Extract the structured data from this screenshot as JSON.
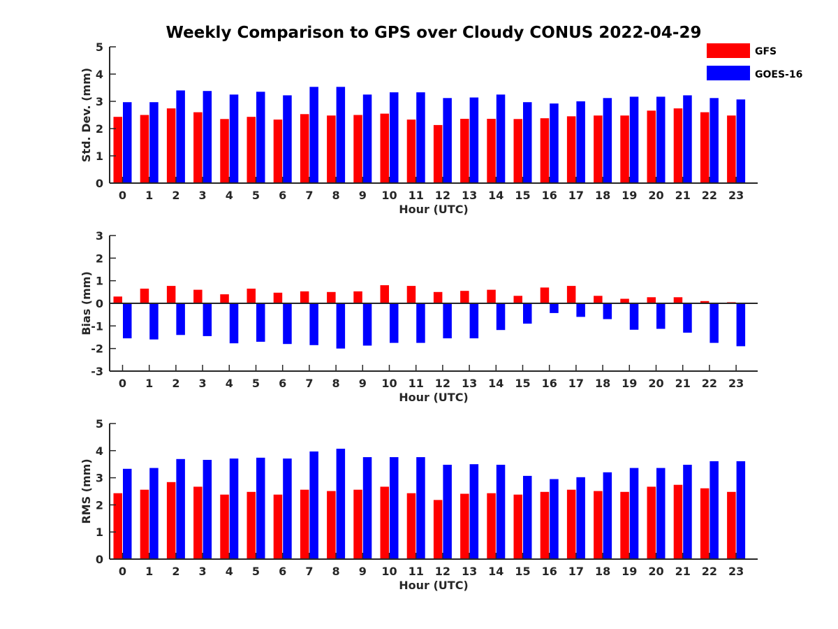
{
  "chart_data": {
    "title": "Weekly Comparison to GPS over Cloudy CONUS 2022-04-29",
    "legend": [
      {
        "name": "GFS",
        "color": "#ff0000"
      },
      {
        "name": "GOES-16",
        "color": "#0000ff"
      }
    ],
    "legend_position": "top-right",
    "x": [
      "0",
      "1",
      "2",
      "3",
      "4",
      "5",
      "6",
      "7",
      "8",
      "9",
      "10",
      "11",
      "12",
      "13",
      "14",
      "15",
      "16",
      "17",
      "18",
      "19",
      "20",
      "21",
      "22",
      "23"
    ],
    "panels": [
      {
        "type": "bar",
        "ylabel": "Std. Dev. (mm)",
        "xlabel": "Hour (UTC)",
        "ylim": [
          0,
          5
        ],
        "yticks": [
          "0",
          "1",
          "2",
          "3",
          "4",
          "5"
        ],
        "grid": false,
        "series": [
          {
            "name": "GFS",
            "values": [
              2.43,
              2.5,
              2.74,
              2.6,
              2.35,
              2.43,
              2.33,
              2.53,
              2.48,
              2.5,
              2.55,
              2.33,
              2.13,
              2.36,
              2.36,
              2.35,
              2.38,
              2.45,
              2.48,
              2.48,
              2.66,
              2.74,
              2.6,
              2.48
            ]
          },
          {
            "name": "GOES-16",
            "values": [
              2.97,
              2.97,
              3.4,
              3.38,
              3.25,
              3.35,
              3.22,
              3.53,
              3.53,
              3.25,
              3.33,
              3.33,
              3.12,
              3.14,
              3.25,
              2.97,
              2.92,
              3.0,
              3.12,
              3.17,
              3.17,
              3.22,
              3.12,
              3.07
            ]
          }
        ]
      },
      {
        "type": "bar",
        "ylabel": "Bias (mm)",
        "xlabel": "Hour (UTC)",
        "ylim": [
          -3,
          3
        ],
        "yticks": [
          "-3",
          "-2",
          "-1",
          "0",
          "1",
          "2",
          "3"
        ],
        "grid": false,
        "series": [
          {
            "name": "GFS",
            "values": [
              0.3,
              0.65,
              0.77,
              0.6,
              0.4,
              0.65,
              0.47,
              0.53,
              0.5,
              0.53,
              0.8,
              0.77,
              0.5,
              0.55,
              0.6,
              0.33,
              0.7,
              0.77,
              0.33,
              0.2,
              0.27,
              0.27,
              0.1,
              0.05
            ]
          },
          {
            "name": "GOES-16",
            "values": [
              -1.55,
              -1.6,
              -1.4,
              -1.45,
              -1.77,
              -1.7,
              -1.8,
              -1.85,
              -2.0,
              -1.87,
              -1.75,
              -1.75,
              -1.55,
              -1.55,
              -1.18,
              -0.9,
              -0.43,
              -0.6,
              -0.7,
              -1.17,
              -1.13,
              -1.3,
              -1.75,
              -1.9
            ]
          }
        ]
      },
      {
        "type": "bar",
        "ylabel": "RMS (mm)",
        "xlabel": "Hour (UTC)",
        "ylim": [
          0,
          5
        ],
        "yticks": [
          "0",
          "1",
          "2",
          "3",
          "4",
          "5"
        ],
        "grid": false,
        "series": [
          {
            "name": "GFS",
            "values": [
              2.43,
              2.56,
              2.84,
              2.67,
              2.38,
              2.48,
              2.38,
              2.56,
              2.51,
              2.56,
              2.67,
              2.43,
              2.18,
              2.41,
              2.43,
              2.38,
              2.48,
              2.56,
              2.51,
              2.48,
              2.67,
              2.74,
              2.61,
              2.48
            ]
          },
          {
            "name": "GOES-16",
            "values": [
              3.33,
              3.36,
              3.69,
              3.66,
              3.71,
              3.74,
              3.71,
              3.97,
              4.07,
              3.76,
              3.76,
              3.76,
              3.48,
              3.5,
              3.48,
              3.07,
              2.95,
              3.02,
              3.2,
              3.36,
              3.36,
              3.48,
              3.61,
              3.61
            ]
          }
        ]
      }
    ]
  }
}
